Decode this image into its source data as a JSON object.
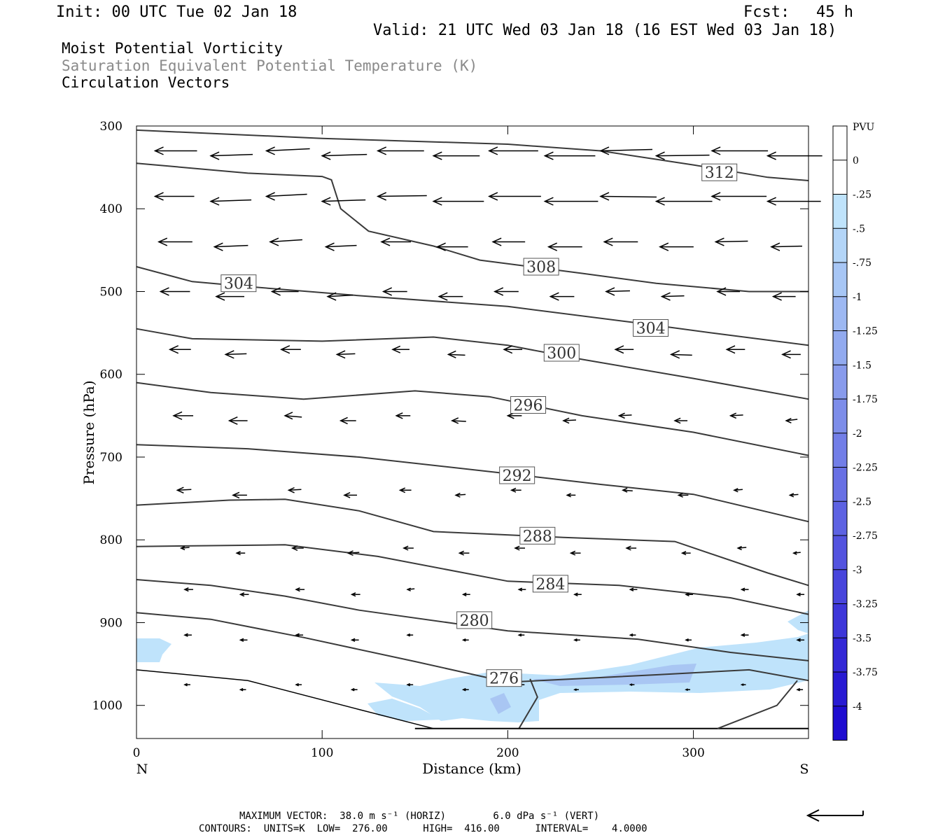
{
  "header": {
    "init": "Init: 00 UTC Tue 02 Jan 18",
    "fcst_label": "Fcst:",
    "fcst_value": "45 h",
    "valid": "Valid: 21 UTC Wed 03 Jan 18 (16 EST Wed 03 Jan 18)"
  },
  "fields": {
    "line1": "Moist Potential Vorticity",
    "line2": "Saturation Equivalent Potential Temperature (K)",
    "line3": "Circulation Vectors"
  },
  "footer": {
    "max_vector": "MAXIMUM VECTOR:  38.0 m s⁻¹ (HORIZ)        6.0 dPa s⁻¹ (VERT)",
    "contours": "CONTOURS:  UNITS=K  LOW=  276.00      HIGH=  416.00      INTERVAL=    4.0000"
  },
  "colors": {
    "contour": "#3a3a3a",
    "pv_light": "#bfe3fb",
    "pv_mid": "#a9c6f3",
    "vector": "#000000"
  },
  "chart_data": {
    "type": "cross-section",
    "xlabel": "Distance (km)",
    "ylabel": "Pressure (hPa)",
    "xlim": [
      0,
      362
    ],
    "ylim": [
      300,
      1040
    ],
    "x_ticks": [
      0,
      100,
      200,
      300
    ],
    "y_ticks": [
      300,
      400,
      500,
      600,
      700,
      800,
      900,
      1000
    ],
    "end_labels": {
      "left": "N",
      "right": "S"
    },
    "colorbar": {
      "unit": "PVU",
      "labels": [
        "0",
        "-.25",
        "-.5",
        "-.75",
        "-1",
        "-1.25",
        "-1.5",
        "-1.75",
        "-2",
        "-2.25",
        "-2.5",
        "-2.75",
        "-3",
        "-3.25",
        "-3.5",
        "-3.75",
        "-4"
      ],
      "colors": [
        "#ffffff",
        "#ffffff",
        "#bfe3fb",
        "#b3d5f8",
        "#a7c6f5",
        "#9db8f2",
        "#92aaef",
        "#889bec",
        "#7d8de9",
        "#727ee7",
        "#6870e4",
        "#5d62e2",
        "#5353df",
        "#4845dc",
        "#3d36d9",
        "#3328d6",
        "#281ad3",
        "#1e0cd0"
      ]
    },
    "contours": [
      {
        "value": 312,
        "label": "312",
        "label_at": [
          314,
          356
        ],
        "points": [
          [
            0,
            305
          ],
          [
            100,
            315
          ],
          [
            200,
            322
          ],
          [
            250,
            330
          ],
          [
            300,
            347
          ],
          [
            340,
            362
          ],
          [
            362,
            366
          ]
        ]
      },
      {
        "value": 308,
        "label": "308",
        "label_at": [
          218,
          470
        ],
        "points": [
          [
            0,
            345
          ],
          [
            60,
            357
          ],
          [
            100,
            361
          ],
          [
            105,
            365
          ],
          [
            110,
            400
          ],
          [
            125,
            427
          ],
          [
            160,
            445
          ],
          [
            185,
            462
          ],
          [
            240,
            478
          ],
          [
            280,
            490
          ],
          [
            330,
            500
          ],
          [
            362,
            500
          ]
        ]
      },
      {
        "value": 304,
        "label": "304",
        "label_at": [
          55,
          490
        ],
        "points": [
          [
            0,
            470
          ],
          [
            30,
            488
          ],
          [
            60,
            494
          ],
          [
            120,
            505
          ],
          [
            200,
            518
          ],
          [
            270,
            538
          ],
          [
            310,
            550
          ],
          [
            362,
            565
          ]
        ]
      },
      {
        "value": 304,
        "label": "304",
        "label_at": [
          277,
          544
        ],
        "points": []
      },
      {
        "value": 300,
        "label": "300",
        "label_at": [
          229,
          574
        ],
        "points": [
          [
            0,
            545
          ],
          [
            30,
            557
          ],
          [
            100,
            560
          ],
          [
            160,
            555
          ],
          [
            200,
            565
          ],
          [
            240,
            582
          ],
          [
            300,
            605
          ],
          [
            362,
            630
          ]
        ]
      },
      {
        "value": 296,
        "label": "296",
        "label_at": [
          211,
          637
        ],
        "points": [
          [
            0,
            610
          ],
          [
            40,
            622
          ],
          [
            90,
            630
          ],
          [
            150,
            620
          ],
          [
            190,
            627
          ],
          [
            240,
            650
          ],
          [
            300,
            670
          ],
          [
            362,
            698
          ]
        ]
      },
      {
        "value": 292,
        "label": "292",
        "label_at": [
          205,
          722
        ],
        "points": [
          [
            0,
            685
          ],
          [
            60,
            690
          ],
          [
            120,
            700
          ],
          [
            200,
            720
          ],
          [
            250,
            733
          ],
          [
            300,
            745
          ],
          [
            362,
            778
          ]
        ]
      },
      {
        "value": 288,
        "label": "288",
        "label_at": [
          216,
          795
        ],
        "points": [
          [
            0,
            758
          ],
          [
            50,
            752
          ],
          [
            80,
            751
          ],
          [
            120,
            765
          ],
          [
            160,
            790
          ],
          [
            230,
            797
          ],
          [
            290,
            802
          ],
          [
            340,
            840
          ],
          [
            362,
            855
          ]
        ]
      },
      {
        "value": 284,
        "label": "284",
        "label_at": [
          223,
          853
        ],
        "points": [
          [
            0,
            808
          ],
          [
            40,
            807
          ],
          [
            80,
            806
          ],
          [
            130,
            820
          ],
          [
            200,
            850
          ],
          [
            260,
            855
          ],
          [
            320,
            870
          ],
          [
            362,
            890
          ]
        ]
      },
      {
        "value": 280,
        "label": "280",
        "label_at": [
          182,
          897
        ],
        "points": [
          [
            0,
            848
          ],
          [
            40,
            855
          ],
          [
            80,
            868
          ],
          [
            120,
            885
          ],
          [
            200,
            910
          ],
          [
            270,
            920
          ],
          [
            320,
            936
          ],
          [
            362,
            946
          ]
        ]
      },
      {
        "value": 276,
        "label": "276",
        "label_at": [
          198,
          967
        ],
        "points": [
          [
            0,
            888
          ],
          [
            40,
            896
          ],
          [
            90,
            918
          ],
          [
            150,
            947
          ],
          [
            200,
            972
          ],
          [
            280,
            963
          ],
          [
            330,
            957
          ],
          [
            362,
            970
          ]
        ]
      }
    ]
  }
}
